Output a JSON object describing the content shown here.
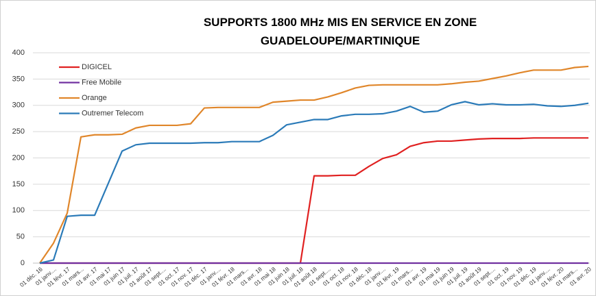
{
  "chart_data": {
    "type": "line",
    "title": "SUPPORTS 1800 MHz MIS EN SERVICE  EN ZONE GUADELOUPE/MARTINIQUE",
    "categories": [
      "01 déc. 16",
      "01 janv....",
      "01 févr. 17",
      "01 mars...",
      "01 avr. 17",
      "01 mai 17",
      "01 juin 17",
      "01 juil. 17",
      "01 août 17",
      "01 sept....",
      "01 oct. 17",
      "01 nov. 17",
      "01 déc. 17",
      "01 janv....",
      "01 févr. 18",
      "01 mars...",
      "01 avr. 18",
      "01 mai 18",
      "01 juin 18",
      "01 juil. 18",
      "01 août 18",
      "01 sept....",
      "01 oct. 18",
      "01 nov. 18",
      "01 déc. 18",
      "01 janv....",
      "01 févr. 19",
      "01 mars...",
      "01 avr. 19",
      "01 mai 19",
      "01 juin 19",
      "01 juil. 19",
      "01 août 19",
      "01 sept....",
      "01 oct. 19",
      "01 nov. 19",
      "01 déc. 19",
      "01 janv....",
      "01 févr. 20",
      "01 mars...",
      "01 avr. 20"
    ],
    "series": [
      {
        "name": "DIGICEL",
        "color": "#e02020",
        "values": [
          0,
          0,
          0,
          0,
          0,
          0,
          0,
          0,
          0,
          0,
          0,
          0,
          0,
          0,
          0,
          0,
          0,
          0,
          0,
          0,
          166,
          166,
          167,
          167,
          184,
          199,
          206,
          222,
          229,
          232,
          232,
          234,
          236,
          237,
          237,
          237,
          238,
          238,
          238,
          238,
          238
        ]
      },
      {
        "name": "Free Mobile",
        "color": "#7030a0",
        "values": [
          0,
          0,
          0,
          0,
          0,
          0,
          0,
          0,
          0,
          0,
          0,
          0,
          0,
          0,
          0,
          0,
          0,
          0,
          0,
          0,
          0,
          0,
          0,
          0,
          0,
          0,
          0,
          0,
          0,
          0,
          0,
          0,
          0,
          0,
          0,
          0,
          0,
          0,
          0,
          0,
          0
        ]
      },
      {
        "name": "Orange",
        "color": "#e0862a",
        "values": [
          0,
          38,
          95,
          240,
          244,
          244,
          245,
          257,
          262,
          262,
          262,
          265,
          295,
          296,
          296,
          296,
          296,
          306,
          308,
          310,
          310,
          316,
          324,
          333,
          338,
          339,
          339,
          339,
          339,
          339,
          341,
          344,
          346,
          351,
          356,
          362,
          367,
          367,
          367,
          372,
          374
        ]
      },
      {
        "name": "Outremer Telecom",
        "color": "#2a7ab8",
        "values": [
          0,
          6,
          89,
          91,
          91,
          152,
          213,
          225,
          228,
          228,
          228,
          228,
          229,
          229,
          231,
          231,
          231,
          243,
          263,
          268,
          273,
          273,
          280,
          283,
          283,
          284,
          289,
          298,
          287,
          289,
          301,
          307,
          301,
          303,
          301,
          301,
          302,
          299,
          298,
          300,
          304
        ]
      }
    ],
    "ylim": [
      0,
      400
    ],
    "yticks": [
      0,
      50,
      100,
      150,
      200,
      250,
      300,
      350,
      400
    ],
    "grid": true,
    "legend": "top-left"
  }
}
